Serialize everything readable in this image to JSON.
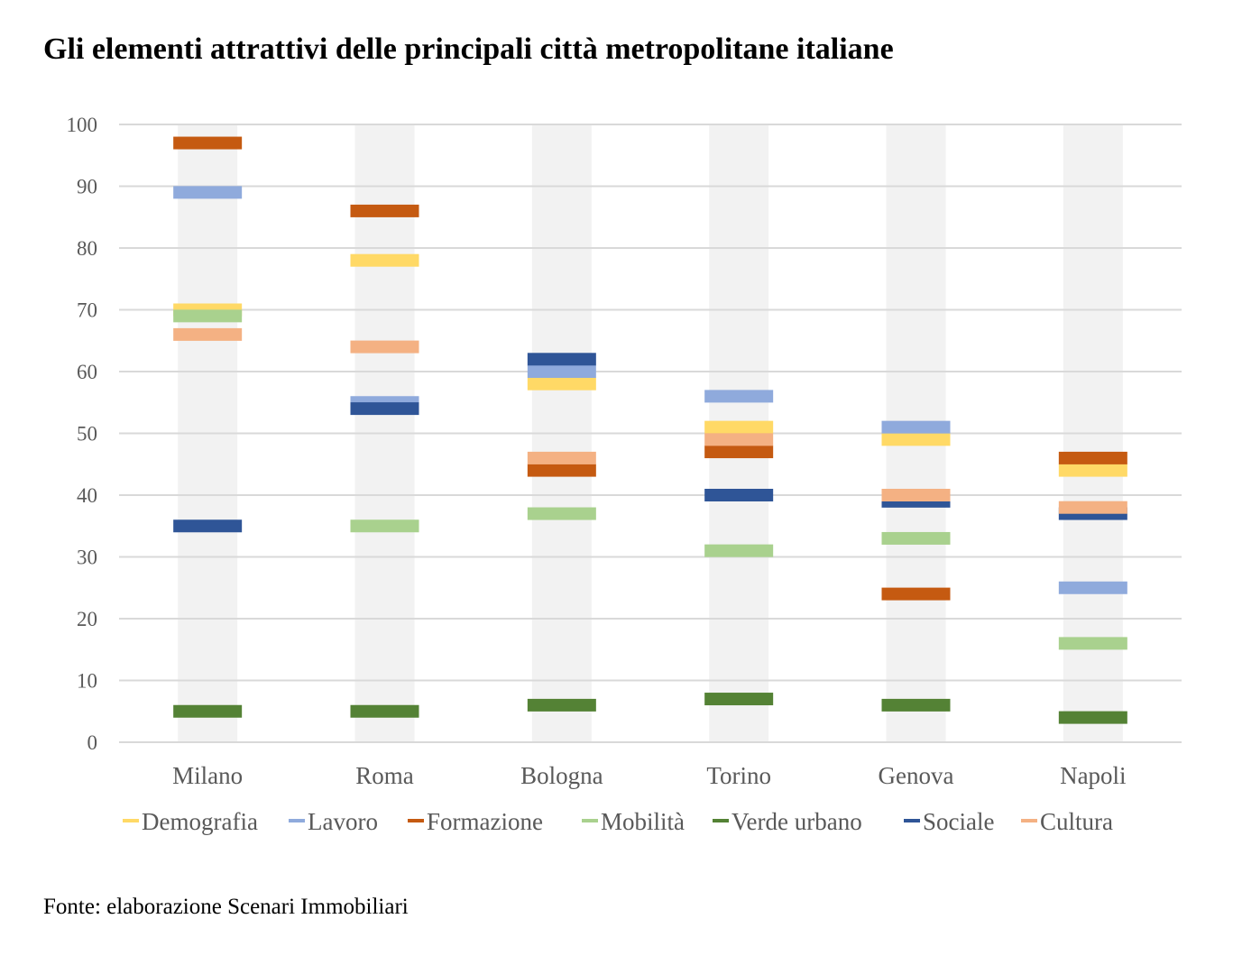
{
  "title": "Gli elementi attrattivi delle principali città metropolitane italiane",
  "source": "Fonte: elaborazione Scenari Immobiliari",
  "chart_data": {
    "type": "scatter",
    "categories": [
      "Milano",
      "Roma",
      "Bologna",
      "Torino",
      "Genova",
      "Napoli"
    ],
    "ylim": [
      0,
      100
    ],
    "yticks": [
      "0",
      "10",
      "20",
      "30",
      "40",
      "50",
      "60",
      "70",
      "80",
      "90",
      "100"
    ],
    "grid": true,
    "legend_position": "bottom",
    "series": [
      {
        "name": "Demografia",
        "color": "#FFD966",
        "values": [
          70,
          78,
          58,
          51,
          49,
          44
        ]
      },
      {
        "name": "Lavoro",
        "color": "#8FAADC",
        "values": [
          89,
          55,
          60,
          56,
          51,
          25
        ]
      },
      {
        "name": "Formazione",
        "color": "#C55A11",
        "values": [
          97,
          86,
          44,
          47,
          24,
          46
        ]
      },
      {
        "name": "Mobilità",
        "color": "#A9D18E",
        "values": [
          69,
          35,
          37,
          31,
          33,
          16
        ]
      },
      {
        "name": "Verde urbano",
        "color": "#548235",
        "values": [
          5,
          5,
          6,
          7,
          6,
          4
        ]
      },
      {
        "name": "Sociale",
        "color": "#2F5597",
        "values": [
          35,
          54,
          62,
          40,
          39,
          37
        ]
      },
      {
        "name": "Cultura",
        "color": "#F4B183",
        "values": [
          66,
          64,
          46,
          49,
          40,
          38
        ]
      }
    ]
  }
}
